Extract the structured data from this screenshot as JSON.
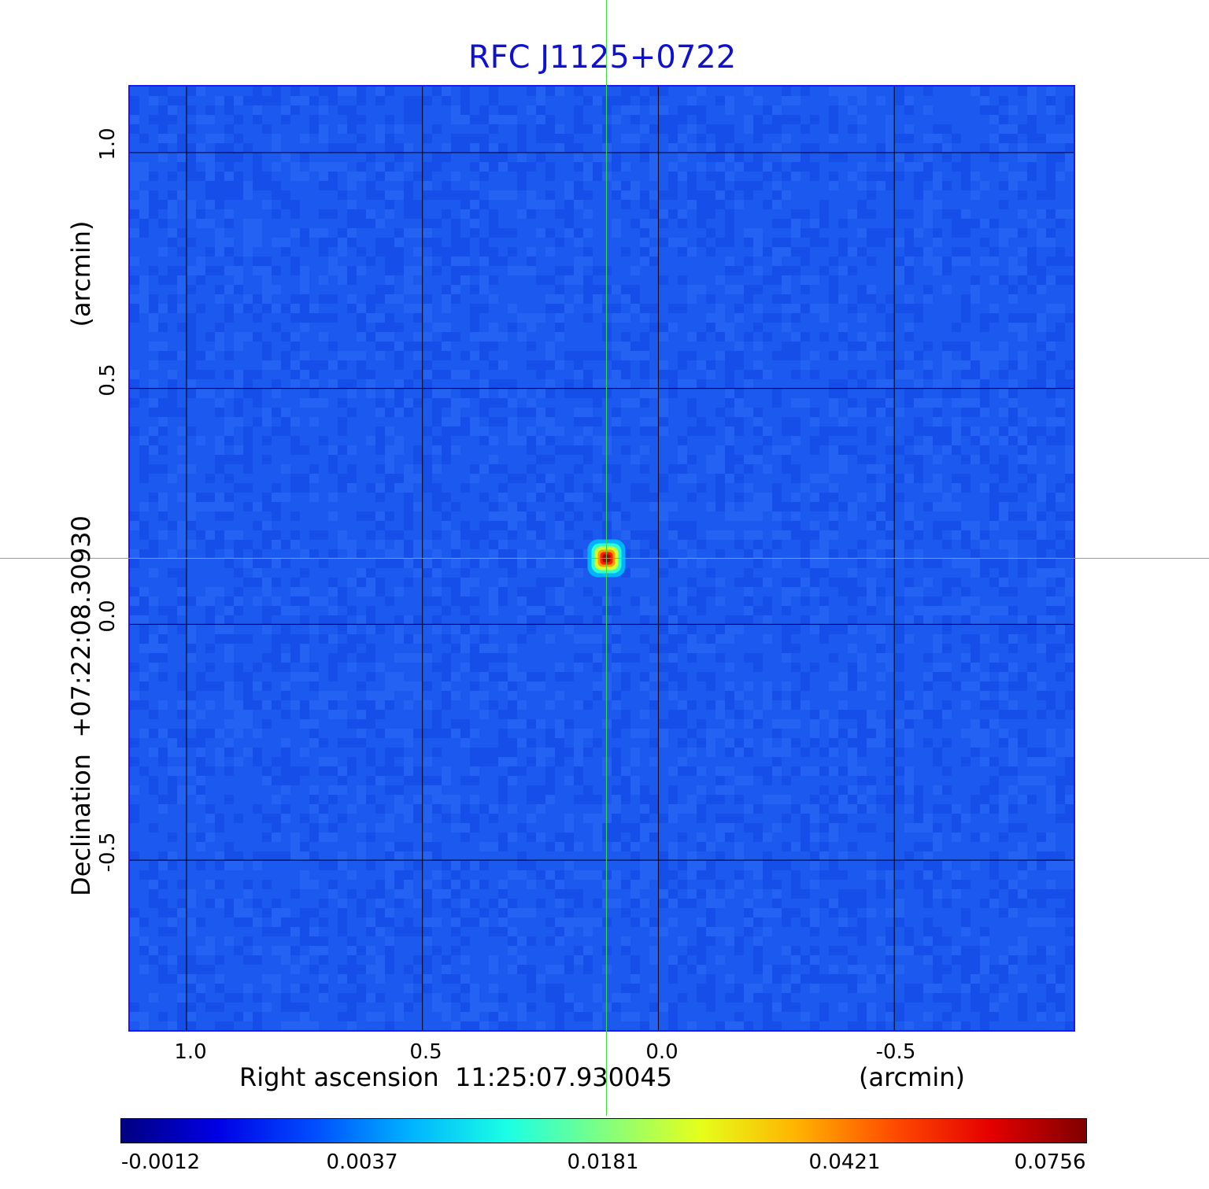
{
  "chart_data": {
    "type": "heatmap",
    "title": "RFC J1125+0722",
    "xlabel": "Right ascension  11:25:07.930045",
    "xunit": "(arcmin)",
    "ylabel": "Declination  +07:22:08.30930",
    "yunit": "(arcmin)",
    "xlim": [
      1.12,
      -0.88
    ],
    "ylim": [
      -0.86,
      1.14
    ],
    "x_ticks": [
      "1.0",
      "0.5",
      "0.0",
      "-0.5"
    ],
    "y_ticks": [
      "1.0",
      "0.5",
      "0.0",
      "-0.5"
    ],
    "x_tick_values": [
      1.0,
      0.5,
      0.0,
      -0.5
    ],
    "y_tick_values": [
      1.0,
      0.5,
      0.0,
      -0.5
    ],
    "grid": true,
    "source_peak": {
      "x": 0.11,
      "y": 0.14,
      "value": 0.0756
    },
    "crosshair": {
      "x": 0.11,
      "y": 0.14,
      "color": "#3ddc3d"
    },
    "colorbar": {
      "colormap": "jet",
      "ticks": [
        "-0.0012",
        "0.0037",
        "0.0181",
        "0.0421",
        "0.0756"
      ]
    },
    "colors": {
      "background_field": "#1c5aef",
      "title": "#1010d0"
    }
  }
}
